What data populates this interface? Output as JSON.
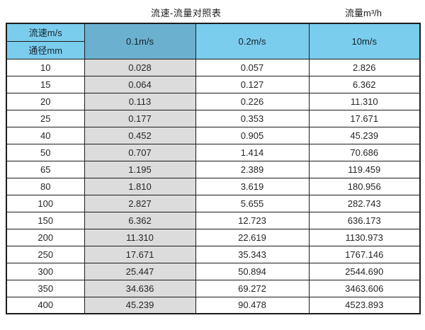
{
  "captions": {
    "table_title": "流速-流量对照表",
    "unit_label": "流量m³/h"
  },
  "table": {
    "corner": {
      "top_label": "流速m/s",
      "bottom_label": "通径mm"
    },
    "velocity_columns": [
      "0.1m/s",
      "0.2m/s",
      "10m/s"
    ],
    "rows": [
      {
        "diameter": "10",
        "values": [
          "0.028",
          "0.057",
          "2.826"
        ]
      },
      {
        "diameter": "15",
        "values": [
          "0.064",
          "0.127",
          "6.362"
        ]
      },
      {
        "diameter": "20",
        "values": [
          "0.113",
          "0.226",
          "11.310"
        ]
      },
      {
        "diameter": "25",
        "values": [
          "0.177",
          "0.353",
          "17.671"
        ]
      },
      {
        "diameter": "40",
        "values": [
          "0.452",
          "0.905",
          "45.239"
        ]
      },
      {
        "diameter": "50",
        "values": [
          "0.707",
          "1.414",
          "70.686"
        ]
      },
      {
        "diameter": "65",
        "values": [
          "1.195",
          "2.389",
          "119.459"
        ]
      },
      {
        "diameter": "80",
        "values": [
          "1.810",
          "3.619",
          "180.956"
        ]
      },
      {
        "diameter": "100",
        "values": [
          "2.827",
          "5.655",
          "282.743"
        ]
      },
      {
        "diameter": "150",
        "values": [
          "6.362",
          "12.723",
          "636.173"
        ]
      },
      {
        "diameter": "200",
        "values": [
          "11.310",
          "22.619",
          "1130.973"
        ]
      },
      {
        "diameter": "250",
        "values": [
          "17.671",
          "35.343",
          "1767.146"
        ]
      },
      {
        "diameter": "300",
        "values": [
          "25.447",
          "50.894",
          "2544.690"
        ]
      },
      {
        "diameter": "350",
        "values": [
          "34.636",
          "69.272",
          "3463.606"
        ]
      },
      {
        "diameter": "400",
        "values": [
          "45.239",
          "90.478",
          "4523.893"
        ]
      }
    ]
  },
  "colors": {
    "header_blue": "#7bcdee",
    "highlight_column_blue": "#6bb0cf",
    "gray_column": "#dcdcdc",
    "border": "#1c1c1c"
  }
}
